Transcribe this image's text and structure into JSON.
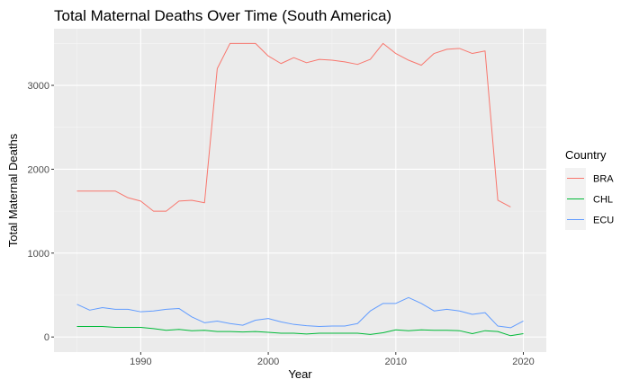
{
  "chart_data": {
    "type": "line",
    "title": "Total Maternal Deaths Over Time (South America)",
    "xlabel": "Year",
    "ylabel": "Total Maternal Deaths",
    "xlim": [
      1983.2,
      2021.8
    ],
    "ylim": [
      -180,
      3675
    ],
    "x_ticks": [
      1990,
      2000,
      2010,
      2020
    ],
    "y_ticks": [
      0,
      1000,
      2000,
      3000
    ],
    "grid": true,
    "legend": {
      "title": "Country",
      "position": "right"
    },
    "series": [
      {
        "name": "BRA",
        "color": "#F8766D",
        "x": [
          1985,
          1986,
          1987,
          1988,
          1989,
          1990,
          1991,
          1992,
          1993,
          1994,
          1995,
          1996,
          1997,
          1998,
          1999,
          2000,
          2001,
          2002,
          2003,
          2004,
          2005,
          2006,
          2007,
          2008,
          2009,
          2010,
          2011,
          2012,
          2013,
          2014,
          2015,
          2016,
          2017,
          2018,
          2019
        ],
        "y": [
          1740,
          1740,
          1740,
          1740,
          1660,
          1620,
          1500,
          1500,
          1620,
          1630,
          1600,
          3200,
          3500,
          3500,
          3500,
          3350,
          3260,
          3330,
          3270,
          3310,
          3300,
          3280,
          3250,
          3310,
          3500,
          3380,
          3300,
          3240,
          3380,
          3430,
          3440,
          3380,
          3410,
          1630,
          1550
        ]
      },
      {
        "name": "CHL",
        "color": "#00BA38",
        "x": [
          1985,
          1986,
          1987,
          1988,
          1989,
          1990,
          1991,
          1992,
          1993,
          1994,
          1995,
          1996,
          1997,
          1998,
          1999,
          2000,
          2001,
          2002,
          2003,
          2004,
          2005,
          2006,
          2007,
          2008,
          2009,
          2010,
          2011,
          2012,
          2013,
          2014,
          2015,
          2016,
          2017,
          2018,
          2019,
          2020
        ],
        "y": [
          125,
          125,
          125,
          115,
          115,
          115,
          100,
          80,
          90,
          75,
          80,
          65,
          65,
          60,
          65,
          55,
          45,
          45,
          35,
          45,
          45,
          45,
          45,
          30,
          50,
          85,
          75,
          85,
          80,
          80,
          75,
          40,
          75,
          65,
          15,
          40
        ]
      },
      {
        "name": "ECU",
        "color": "#619CFF",
        "x": [
          1985,
          1986,
          1987,
          1988,
          1989,
          1990,
          1991,
          1992,
          1993,
          1994,
          1995,
          1996,
          1997,
          1998,
          1999,
          2000,
          2001,
          2002,
          2003,
          2004,
          2005,
          2006,
          2007,
          2008,
          2009,
          2010,
          2011,
          2012,
          2013,
          2014,
          2015,
          2016,
          2017,
          2018,
          2019,
          2020
        ],
        "y": [
          390,
          320,
          350,
          330,
          330,
          300,
          310,
          330,
          340,
          240,
          170,
          190,
          160,
          140,
          200,
          220,
          180,
          150,
          135,
          125,
          130,
          130,
          160,
          310,
          400,
          400,
          470,
          400,
          310,
          330,
          310,
          270,
          290,
          130,
          110,
          190
        ]
      }
    ]
  }
}
